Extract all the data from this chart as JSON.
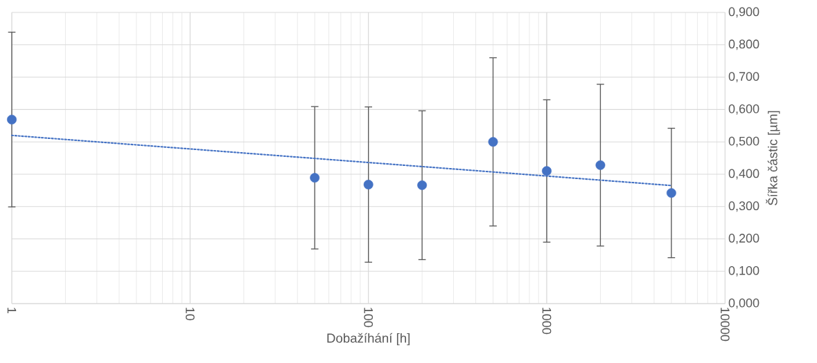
{
  "chart_data": {
    "type": "scatter",
    "xlabel": "Dobažíhání [h]",
    "ylabel": "Šířka částic [µm]",
    "log": "x",
    "grid": true,
    "marker": "circle",
    "xlim": [
      1,
      10000
    ],
    "xticks": [
      1,
      10,
      100,
      1000,
      10000
    ],
    "ylim": [
      0,
      0.9
    ],
    "yticks": [
      {
        "value": 0,
        "label": "0,000"
      },
      {
        "value": 0.1,
        "label": "0,100"
      },
      {
        "value": 0.2,
        "label": "0,200"
      },
      {
        "value": 0.3,
        "label": "0,300"
      },
      {
        "value": 0.4,
        "label": "0,400"
      },
      {
        "value": 0.5,
        "label": "0,500"
      },
      {
        "value": 0.6,
        "label": "0,600"
      },
      {
        "value": 0.7,
        "label": "0,700"
      },
      {
        "value": 0.8,
        "label": "0,800"
      },
      {
        "value": 0.9,
        "label": "0,900"
      }
    ],
    "series": [
      {
        "color": "#4472c4",
        "x": [
          1,
          50,
          100,
          200,
          500,
          1000,
          2000,
          5000
        ],
        "values": [
          0.569,
          0.389,
          0.368,
          0.366,
          0.5,
          0.41,
          0.428,
          0.342
        ],
        "errors": [
          0.27,
          0.22,
          0.24,
          0.23,
          0.26,
          0.22,
          0.25,
          0.2
        ]
      },
      {
        "type": "line",
        "color": "#4472c4",
        "line_style": "dotted",
        "marker": "none",
        "x": [
          1,
          5000
        ],
        "values": [
          0.52,
          0.365
        ]
      }
    ]
  }
}
